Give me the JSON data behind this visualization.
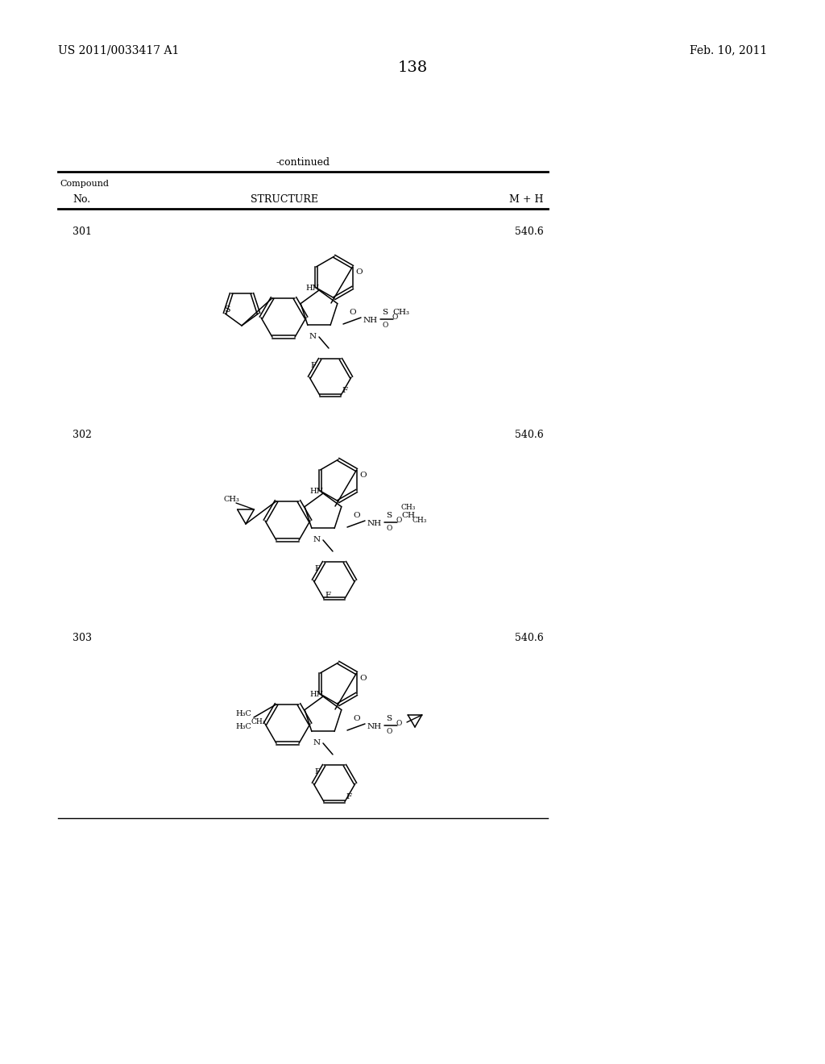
{
  "page_number": "138",
  "patent_number": "US 2011/0033417 A1",
  "patent_date": "Feb. 10, 2011",
  "table_title": "-continued",
  "col_headers": [
    "Compound\nNo.",
    "STRUCTURE",
    "M + H"
  ],
  "compounds": [
    {
      "no": "301",
      "mh": "540.6"
    },
    {
      "no": "302",
      "mh": "540.6"
    },
    {
      "no": "303",
      "mh": "540.6"
    }
  ],
  "bg_color": "#ffffff",
  "text_color": "#000000",
  "line_color": "#000000",
  "font_size_header": 9,
  "font_size_body": 9,
  "font_size_page": 10,
  "font_size_page_num": 12
}
